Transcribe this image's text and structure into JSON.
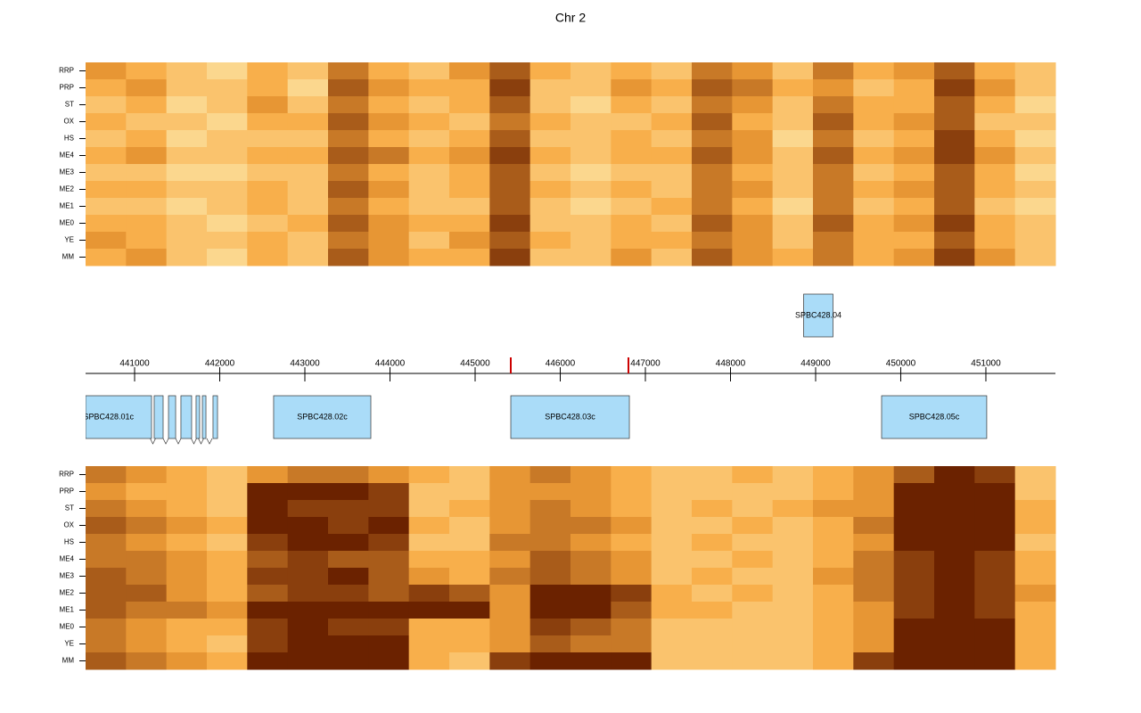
{
  "chart_data": [
    {
      "type": "heatmap",
      "title": "Chr 2",
      "rows": [
        "RRP",
        "PRP",
        "ST",
        "OX",
        "HS",
        "ME4",
        "ME3",
        "ME2",
        "ME1",
        "ME0",
        "YE",
        "MM"
      ],
      "vlim": [
        0,
        9
      ],
      "colors": [
        "#ffffd2",
        "#f7a53a",
        "#6b2200"
      ],
      "values": [
        [
          5,
          4,
          3,
          2,
          4,
          3,
          6,
          4,
          3,
          5,
          7,
          4,
          3,
          4,
          3,
          6,
          5,
          3,
          6,
          4,
          5,
          7,
          4,
          3
        ],
        [
          4,
          5,
          3,
          3,
          4,
          2,
          7,
          5,
          4,
          4,
          8,
          3,
          3,
          5,
          4,
          7,
          6,
          4,
          5,
          3,
          4,
          8,
          5,
          3
        ],
        [
          3,
          4,
          2,
          3,
          5,
          3,
          6,
          4,
          3,
          4,
          7,
          3,
          2,
          4,
          3,
          6,
          5,
          3,
          6,
          4,
          4,
          7,
          4,
          2
        ],
        [
          4,
          3,
          3,
          2,
          4,
          4,
          7,
          5,
          4,
          3,
          6,
          4,
          3,
          3,
          4,
          7,
          4,
          3,
          7,
          4,
          5,
          7,
          3,
          3
        ],
        [
          3,
          4,
          2,
          3,
          3,
          3,
          6,
          4,
          3,
          4,
          7,
          3,
          3,
          4,
          3,
          6,
          5,
          2,
          6,
          3,
          4,
          8,
          4,
          2
        ],
        [
          4,
          5,
          3,
          3,
          4,
          4,
          7,
          6,
          4,
          5,
          8,
          4,
          3,
          4,
          4,
          7,
          5,
          3,
          7,
          4,
          5,
          8,
          5,
          3
        ],
        [
          3,
          3,
          2,
          2,
          3,
          3,
          6,
          4,
          3,
          4,
          7,
          3,
          2,
          3,
          3,
          6,
          4,
          3,
          6,
          3,
          4,
          7,
          4,
          2
        ],
        [
          4,
          4,
          3,
          3,
          4,
          3,
          7,
          5,
          3,
          4,
          7,
          4,
          3,
          4,
          3,
          6,
          5,
          3,
          6,
          4,
          5,
          7,
          4,
          3
        ],
        [
          3,
          3,
          2,
          3,
          4,
          3,
          6,
          4,
          3,
          3,
          7,
          3,
          2,
          3,
          4,
          6,
          4,
          2,
          6,
          3,
          4,
          7,
          3,
          2
        ],
        [
          4,
          4,
          3,
          2,
          3,
          4,
          7,
          5,
          4,
          4,
          8,
          3,
          3,
          4,
          3,
          7,
          5,
          3,
          7,
          4,
          5,
          8,
          4,
          3
        ],
        [
          5,
          4,
          3,
          3,
          4,
          3,
          6,
          5,
          3,
          5,
          7,
          4,
          3,
          4,
          4,
          6,
          5,
          3,
          6,
          4,
          4,
          7,
          4,
          3
        ],
        [
          4,
          5,
          3,
          2,
          4,
          3,
          7,
          5,
          4,
          4,
          8,
          3,
          3,
          5,
          3,
          7,
          5,
          4,
          6,
          4,
          5,
          8,
          5,
          3
        ]
      ]
    },
    {
      "type": "gene-track",
      "xlim": [
        440424,
        451817
      ],
      "xticks": [
        441000,
        442000,
        443000,
        444000,
        445000,
        446000,
        447000,
        448000,
        449000,
        450000,
        451000
      ],
      "markers": [
        445419,
        446801
      ],
      "marker_color": "#cc0000",
      "gene_color": "#aadcf8",
      "genes": [
        {
          "name": "SPBC428.01c",
          "strand": "-",
          "exons": [
            [
              440424,
              441199
            ],
            [
              441230,
              441335
            ],
            [
              441398,
              441482
            ],
            [
              441544,
              441670
            ],
            [
              441722,
              441764
            ],
            [
              441796,
              441838
            ],
            [
              441921,
              441974
            ]
          ]
        },
        {
          "name": "SPBC428.02c",
          "strand": "-",
          "exons": [
            [
              442633,
              443775
            ]
          ]
        },
        {
          "name": "SPBC428.03c",
          "strand": "-",
          "exons": [
            [
              445419,
              446812
            ]
          ]
        },
        {
          "name": "SPBC428.04",
          "strand": "+",
          "exons": [
            [
              448859,
              449204
            ]
          ]
        },
        {
          "name": "SPBC428.05c",
          "strand": "-",
          "exons": [
            [
              449775,
              451010
            ]
          ]
        }
      ]
    },
    {
      "type": "heatmap",
      "rows": [
        "RRP",
        "PRP",
        "ST",
        "OX",
        "HS",
        "ME4",
        "ME3",
        "ME2",
        "ME1",
        "ME0",
        "YE",
        "MM"
      ],
      "vlim": [
        0,
        9
      ],
      "colors": [
        "#ffffd2",
        "#f7a53a",
        "#6b2200"
      ],
      "values": [
        [
          6,
          5,
          4,
          3,
          5,
          6,
          6,
          5,
          4,
          3,
          5,
          6,
          5,
          4,
          3,
          3,
          4,
          3,
          4,
          5,
          7,
          9,
          8,
          3
        ],
        [
          5,
          4,
          4,
          3,
          9,
          9,
          9,
          8,
          3,
          3,
          5,
          5,
          5,
          4,
          3,
          3,
          3,
          3,
          4,
          5,
          9,
          9,
          9,
          3
        ],
        [
          6,
          5,
          4,
          3,
          9,
          8,
          8,
          8,
          3,
          4,
          5,
          6,
          5,
          4,
          3,
          4,
          3,
          4,
          5,
          5,
          9,
          9,
          9,
          4
        ],
        [
          7,
          6,
          5,
          4,
          9,
          9,
          8,
          9,
          4,
          3,
          5,
          6,
          6,
          5,
          3,
          3,
          4,
          3,
          4,
          6,
          9,
          9,
          9,
          4
        ],
        [
          6,
          5,
          4,
          3,
          8,
          9,
          9,
          8,
          3,
          3,
          6,
          6,
          5,
          4,
          3,
          4,
          3,
          3,
          4,
          5,
          9,
          9,
          9,
          3
        ],
        [
          6,
          6,
          5,
          4,
          7,
          8,
          7,
          7,
          4,
          4,
          5,
          7,
          6,
          5,
          3,
          3,
          4,
          3,
          4,
          6,
          8,
          9,
          8,
          4
        ],
        [
          7,
          6,
          5,
          4,
          8,
          8,
          9,
          7,
          5,
          4,
          6,
          7,
          6,
          5,
          3,
          4,
          3,
          3,
          5,
          6,
          8,
          9,
          8,
          4
        ],
        [
          7,
          7,
          5,
          4,
          7,
          8,
          8,
          7,
          8,
          7,
          5,
          9,
          9,
          8,
          4,
          3,
          4,
          3,
          4,
          6,
          8,
          9,
          8,
          5
        ],
        [
          7,
          6,
          6,
          5,
          9,
          9,
          9,
          9,
          9,
          9,
          5,
          9,
          9,
          7,
          4,
          4,
          3,
          3,
          4,
          5,
          8,
          9,
          8,
          4
        ],
        [
          6,
          5,
          4,
          4,
          8,
          9,
          8,
          8,
          4,
          4,
          5,
          8,
          7,
          6,
          3,
          3,
          3,
          3,
          4,
          5,
          9,
          9,
          9,
          4
        ],
        [
          6,
          5,
          4,
          3,
          8,
          9,
          9,
          9,
          4,
          4,
          5,
          7,
          6,
          6,
          3,
          3,
          3,
          3,
          4,
          5,
          9,
          9,
          9,
          4
        ],
        [
          7,
          6,
          5,
          4,
          9,
          9,
          9,
          9,
          4,
          3,
          8,
          9,
          9,
          9,
          3,
          3,
          3,
          3,
          4,
          8,
          9,
          9,
          9,
          4
        ]
      ]
    }
  ]
}
